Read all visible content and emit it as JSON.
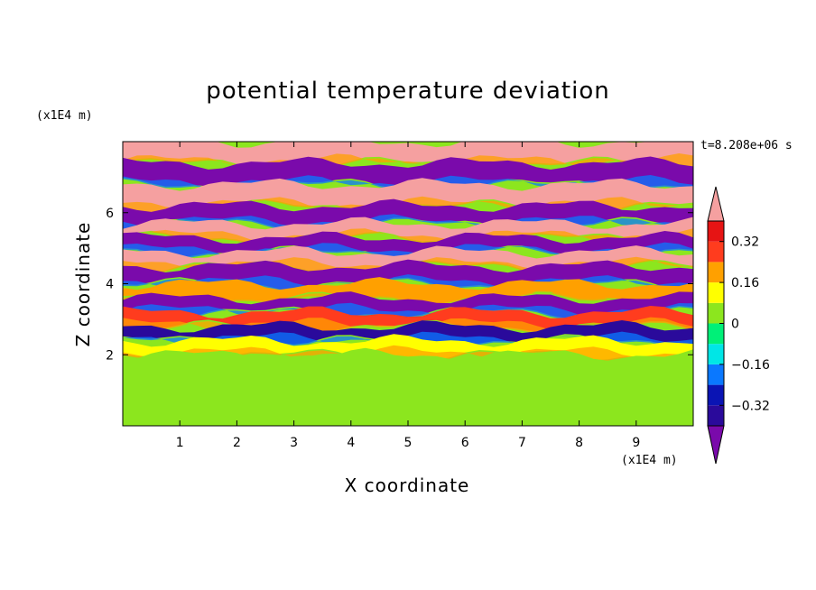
{
  "chart_data": {
    "type": "heatmap",
    "title": "potential temperature deviation",
    "xlabel": "X coordinate",
    "ylabel": "Z coordinate",
    "x_unit": "(x1E4 m)",
    "y_unit": "(x1E4 m)",
    "time_label": "t=8.208e+06 s",
    "xlim": [
      0,
      10
    ],
    "ylim": [
      0,
      8
    ],
    "x_ticks": [
      1,
      2,
      3,
      4,
      5,
      6,
      7,
      8,
      9
    ],
    "y_ticks": [
      2,
      4,
      6
    ],
    "colorbar": {
      "levels": [
        -0.4,
        -0.32,
        -0.24,
        -0.16,
        -0.08,
        0,
        0.08,
        0.16,
        0.24,
        0.32,
        0.4
      ],
      "labels": [
        "0.32",
        "0.16",
        "0",
        "−0.16",
        "−0.32"
      ],
      "label_values": [
        0.32,
        0.16,
        0,
        -0.16,
        -0.32
      ],
      "colors": [
        "#7a0aab",
        "#2a0a9b",
        "#0a14b4",
        "#0a78ff",
        "#00e6e6",
        "#00f078",
        "#8ce61e",
        "#ffff00",
        "#ffa000",
        "#ff3c1e",
        "#e61414",
        "#f5a0a0"
      ],
      "over_color": "#f5a0a0",
      "under_color": "#7a0aab"
    },
    "bands": [
      {
        "z_top": 8.0,
        "z_bottom": 7.4,
        "value": 0.45
      },
      {
        "z_top": 7.4,
        "z_bottom": 6.8,
        "value": -0.45
      },
      {
        "z_top": 6.8,
        "z_bottom": 6.2,
        "value": 0.45
      },
      {
        "z_top": 6.2,
        "z_bottom": 5.7,
        "value": -0.45
      },
      {
        "z_top": 5.7,
        "z_bottom": 5.3,
        "value": 0.45
      },
      {
        "z_top": 5.3,
        "z_bottom": 4.9,
        "value": -0.45
      },
      {
        "z_top": 4.9,
        "z_bottom": 4.5,
        "value": 0.45
      },
      {
        "z_top": 4.5,
        "z_bottom": 4.0,
        "value": -0.45
      },
      {
        "z_top": 4.0,
        "z_bottom": 3.6,
        "value": 0.2
      },
      {
        "z_top": 3.6,
        "z_bottom": 3.2,
        "value": -0.45
      },
      {
        "z_top": 3.2,
        "z_bottom": 2.8,
        "value": 0.3
      },
      {
        "z_top": 2.8,
        "z_bottom": 2.4,
        "value": -0.4
      },
      {
        "z_top": 2.4,
        "z_bottom": 2.0,
        "value": 0.1
      },
      {
        "z_top": 2.0,
        "z_bottom": 0.0,
        "value": 0.02
      }
    ]
  }
}
